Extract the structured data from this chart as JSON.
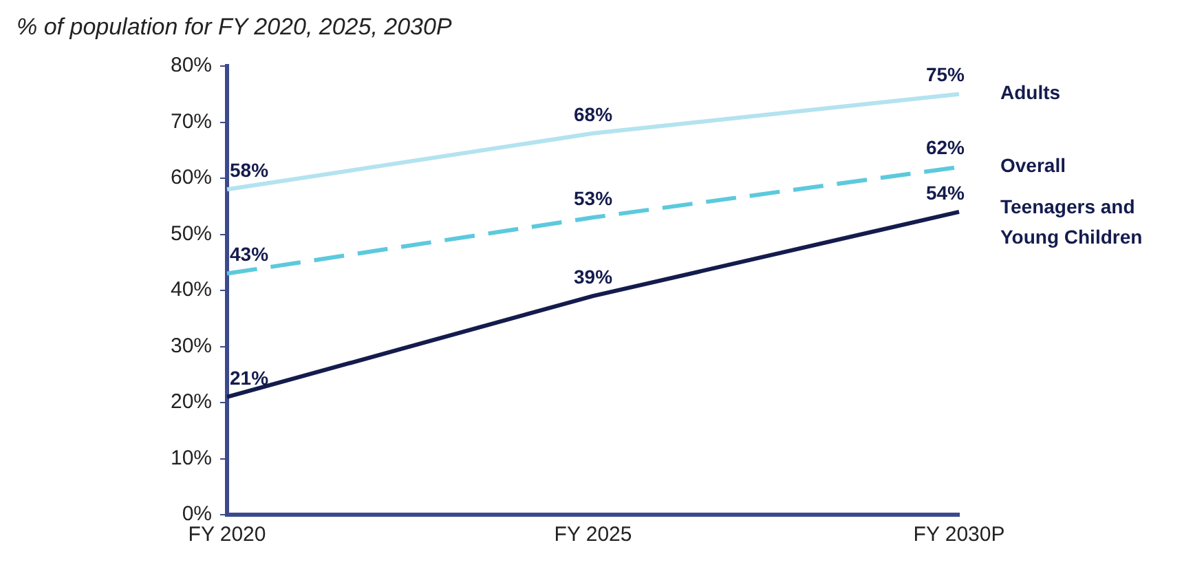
{
  "chart_data": {
    "type": "line",
    "title": "% of population for FY 2020, 2025, 2030P",
    "categories": [
      "FY 2020",
      "FY 2025",
      "FY 2030P"
    ],
    "series": [
      {
        "name": "Adults",
        "color": "#b3e3ef",
        "values": [
          58,
          68,
          75
        ],
        "value_labels": [
          "58%",
          "68%",
          "75%"
        ],
        "line_style": "solid"
      },
      {
        "name": "Overall",
        "color": "#5cc9dd",
        "values": [
          43,
          53,
          62
        ],
        "value_labels": [
          "43%",
          "53%",
          "62%"
        ],
        "line_style": "dashed"
      },
      {
        "name": "Teenagers and Young Children",
        "color": "#141b4d",
        "values": [
          21,
          39,
          54
        ],
        "value_labels": [
          "21%",
          "39%",
          "54%"
        ],
        "line_style": "solid"
      }
    ],
    "ylim": [
      0,
      80
    ],
    "yticks": [
      {
        "value": 0,
        "label": "0%"
      },
      {
        "value": 10,
        "label": "10%"
      },
      {
        "value": 20,
        "label": "20%"
      },
      {
        "value": 30,
        "label": "30%"
      },
      {
        "value": 40,
        "label": "40%"
      },
      {
        "value": 50,
        "label": "50%"
      },
      {
        "value": 60,
        "label": "60%"
      },
      {
        "value": 70,
        "label": "70%"
      },
      {
        "value": 80,
        "label": "80%"
      }
    ],
    "grid": false,
    "marker": "none"
  }
}
